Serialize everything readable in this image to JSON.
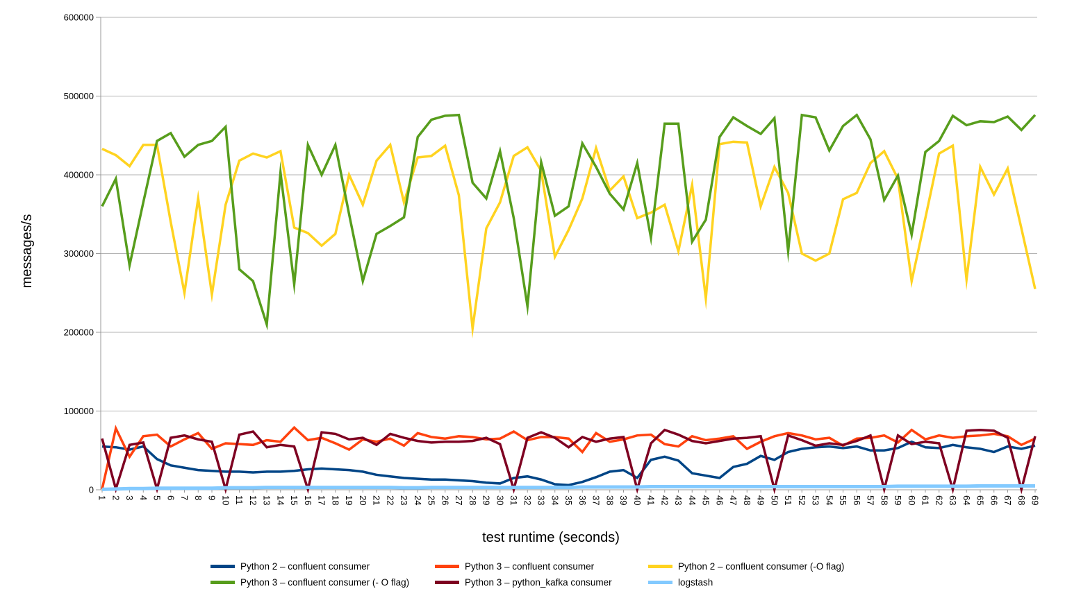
{
  "chart_data": {
    "type": "line",
    "title": "",
    "xlabel": "test runtime (seconds)",
    "ylabel": "messages/s",
    "ylim": [
      0,
      600000
    ],
    "grid": "horizontal",
    "legend_position": "bottom",
    "y_ticks": [
      "0",
      "100000",
      "200000",
      "300000",
      "400000",
      "500000",
      "600000"
    ],
    "x": [
      "1",
      "2",
      "3",
      "4",
      "5",
      "6",
      "7",
      "8",
      "9",
      "10",
      "11",
      "12",
      "13",
      "14",
      "15",
      "16",
      "17",
      "18",
      "19",
      "20",
      "21",
      "22",
      "23",
      "24",
      "25",
      "26",
      "27",
      "28",
      "29",
      "30",
      "31",
      "32",
      "33",
      "34",
      "35",
      "36",
      "37",
      "38",
      "39",
      "40",
      "41",
      "42",
      "43",
      "44",
      "45",
      "46",
      "47",
      "48",
      "49",
      "50",
      "51",
      "52",
      "53",
      "54",
      "55",
      "56",
      "57",
      "58",
      "59",
      "60",
      "61",
      "62",
      "63",
      "64",
      "65",
      "66",
      "67",
      "68",
      "69"
    ],
    "series": [
      {
        "name": "Python 2 – confluent consumer",
        "key": "python2-confluent",
        "color": "#004586",
        "stroke_width": 3.5,
        "values": [
          55000,
          54000,
          51000,
          55000,
          39000,
          31000,
          28000,
          25000,
          24000,
          23000,
          23000,
          22000,
          23000,
          23000,
          24000,
          26000,
          27000,
          26000,
          25000,
          23000,
          19000,
          17000,
          15000,
          14000,
          13000,
          13000,
          12000,
          11000,
          9000,
          8000,
          15000,
          17000,
          13000,
          7000,
          6000,
          10000,
          16000,
          23000,
          25000,
          15000,
          38000,
          42000,
          37000,
          21000,
          18000,
          15000,
          29000,
          33000,
          43000,
          38000,
          48000,
          52000,
          54000,
          55000,
          53000,
          55000,
          50000,
          50000,
          53000,
          61000,
          54000,
          53000,
          57000,
          54000,
          52000,
          48000,
          55000,
          52000,
          56000
        ]
      },
      {
        "name": "Python 3 – confluent consumer",
        "key": "python3-confluent",
        "color": "#ff420e",
        "stroke_width": 3.5,
        "values": [
          1000,
          78000,
          42000,
          68000,
          70000,
          55000,
          64000,
          72000,
          52000,
          59000,
          58000,
          57000,
          63000,
          61000,
          79000,
          63000,
          66000,
          59000,
          51000,
          64000,
          61000,
          65000,
          56000,
          72000,
          67000,
          65000,
          68000,
          67000,
          64000,
          65000,
          74000,
          63000,
          67000,
          67000,
          65000,
          48000,
          72000,
          61000,
          64000,
          69000,
          70000,
          58000,
          55000,
          68000,
          63000,
          65000,
          68000,
          52000,
          61000,
          68000,
          72000,
          69000,
          64000,
          66000,
          56000,
          65000,
          66000,
          69000,
          60000,
          76000,
          64000,
          69000,
          66000,
          68000,
          69000,
          71000,
          68000,
          57000,
          65000
        ]
      },
      {
        "name": "Python 2 – confluent consumer (-O flag)",
        "key": "python2-confluent-oflag",
        "color": "#ffd320",
        "stroke_width": 3.5,
        "values": [
          433000,
          425000,
          411000,
          438000,
          438000,
          340000,
          250000,
          370000,
          248000,
          362000,
          418000,
          427000,
          422000,
          430000,
          333000,
          326000,
          310000,
          325000,
          400000,
          362000,
          418000,
          438000,
          365000,
          422000,
          424000,
          437000,
          374000,
          205000,
          332000,
          365000,
          424000,
          435000,
          405000,
          296000,
          330000,
          370000,
          434000,
          380000,
          398000,
          345000,
          352000,
          362000,
          303000,
          387000,
          243000,
          439000,
          442000,
          441000,
          360000,
          410000,
          377000,
          300000,
          291000,
          300000,
          369000,
          377000,
          415000,
          430000,
          395000,
          265000,
          345000,
          427000,
          437000,
          267000,
          410000,
          375000,
          408000,
          332000,
          255000
        ]
      },
      {
        "name": "Python 3 – confluent consumer (- O flag)",
        "key": "python3-confluent-oflag",
        "color": "#579d1c",
        "stroke_width": 3.5,
        "values": [
          360000,
          395000,
          285000,
          365000,
          443000,
          453000,
          423000,
          438000,
          443000,
          461000,
          280000,
          265000,
          210000,
          403000,
          261000,
          438000,
          400000,
          438000,
          350000,
          265000,
          325000,
          335000,
          346000,
          448000,
          470000,
          475000,
          476000,
          390000,
          370000,
          430000,
          345000,
          233000,
          416000,
          348000,
          360000,
          440000,
          410000,
          376000,
          356000,
          415000,
          320000,
          465000,
          465000,
          315000,
          343000,
          448000,
          473000,
          462000,
          452000,
          472000,
          303000,
          476000,
          473000,
          431000,
          462000,
          476000,
          445000,
          368000,
          399000,
          324000,
          429000,
          443000,
          475000,
          463000,
          468000,
          467000,
          474000,
          457000,
          476000
        ]
      },
      {
        "name": "Python 3 – python_kafka consumer",
        "key": "python3-python-kafka",
        "color": "#7e0021",
        "stroke_width": 3.5,
        "values": [
          65000,
          1000,
          57000,
          60000,
          1000,
          66000,
          69000,
          64000,
          61000,
          500,
          70000,
          74000,
          54000,
          57000,
          55000,
          500,
          73000,
          71000,
          64000,
          66000,
          57000,
          71000,
          66000,
          62000,
          60000,
          61000,
          61000,
          62000,
          66000,
          58000,
          500,
          66000,
          73000,
          66000,
          54000,
          67000,
          61000,
          65000,
          67000,
          500,
          59000,
          76000,
          70000,
          62000,
          59000,
          62000,
          65000,
          66000,
          68000,
          500,
          69000,
          63000,
          56000,
          59000,
          57000,
          62000,
          69000,
          500,
          69000,
          58000,
          61000,
          59000,
          500,
          75000,
          76000,
          75000,
          66000,
          500,
          68000
        ]
      },
      {
        "name": "logstash",
        "key": "logstash",
        "color": "#83caff",
        "stroke_width": 5,
        "values": [
          500,
          1000,
          1500,
          1500,
          2000,
          2000,
          2000,
          2000,
          2000,
          2500,
          2500,
          2500,
          3000,
          3000,
          3000,
          3000,
          3000,
          3000,
          3000,
          3000,
          3000,
          3000,
          2500,
          2500,
          3000,
          3000,
          3000,
          3000,
          3000,
          3000,
          3000,
          3000,
          3000,
          3000,
          3000,
          3500,
          3500,
          3500,
          3500,
          3500,
          4000,
          4000,
          4000,
          4000,
          4000,
          4000,
          4000,
          4000,
          4000,
          4000,
          4000,
          4000,
          4000,
          4000,
          4000,
          4000,
          4000,
          4000,
          4500,
          4500,
          4500,
          4500,
          4500,
          4500,
          5000,
          5000,
          5000,
          5000,
          5000
        ]
      }
    ],
    "axis_color": "#999999",
    "gridline_color": "#b3b3b3"
  }
}
